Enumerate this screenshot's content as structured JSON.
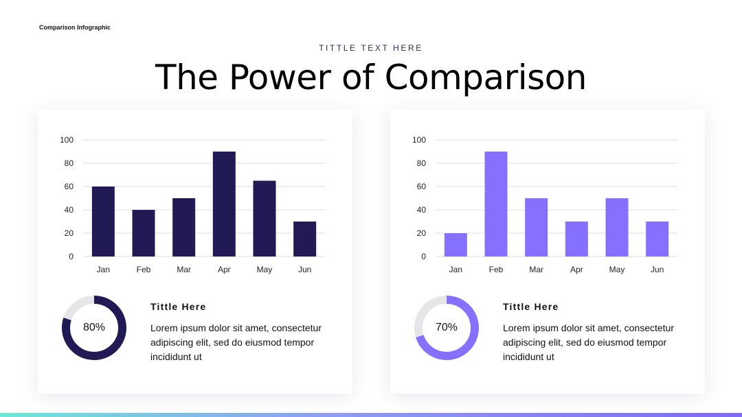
{
  "header": {
    "corner_label": "Comparison Infographic",
    "eyebrow": "TITTLE TEXT HERE",
    "title": "The Power of Comparison"
  },
  "colors": {
    "left_accent": "#221a55",
    "right_accent": "#8570ff",
    "donut_track": "#e6e6e8",
    "gridline": "#dcdcdc"
  },
  "cards": [
    {
      "percent_label": "80%",
      "percent_value": 80,
      "info_title": "Tittle Here",
      "info_body": "Lorem ipsum dolor sit amet, consectetur adipiscing elit, sed do eiusmod tempor incididunt ut"
    },
    {
      "percent_label": "70%",
      "percent_value": 70,
      "info_title": "Tittle Here",
      "info_body": "Lorem ipsum dolor sit amet, consectetur adipiscing elit, sed do eiusmod tempor incididunt ut"
    }
  ],
  "chart_data": [
    {
      "type": "bar",
      "categories": [
        "Jan",
        "Feb",
        "Mar",
        "Apr",
        "May",
        "Jun"
      ],
      "values": [
        60,
        40,
        50,
        90,
        65,
        30
      ],
      "ylim": [
        0,
        100
      ],
      "yticks": [
        0,
        20,
        40,
        60,
        80,
        100
      ],
      "grid": true,
      "color": "#221a55"
    },
    {
      "type": "bar",
      "categories": [
        "Jan",
        "Feb",
        "Mar",
        "Apr",
        "May",
        "Jun"
      ],
      "values": [
        20,
        90,
        50,
        30,
        50,
        30
      ],
      "ylim": [
        0,
        100
      ],
      "yticks": [
        0,
        20,
        40,
        60,
        80,
        100
      ],
      "grid": true,
      "color": "#8570ff"
    }
  ]
}
